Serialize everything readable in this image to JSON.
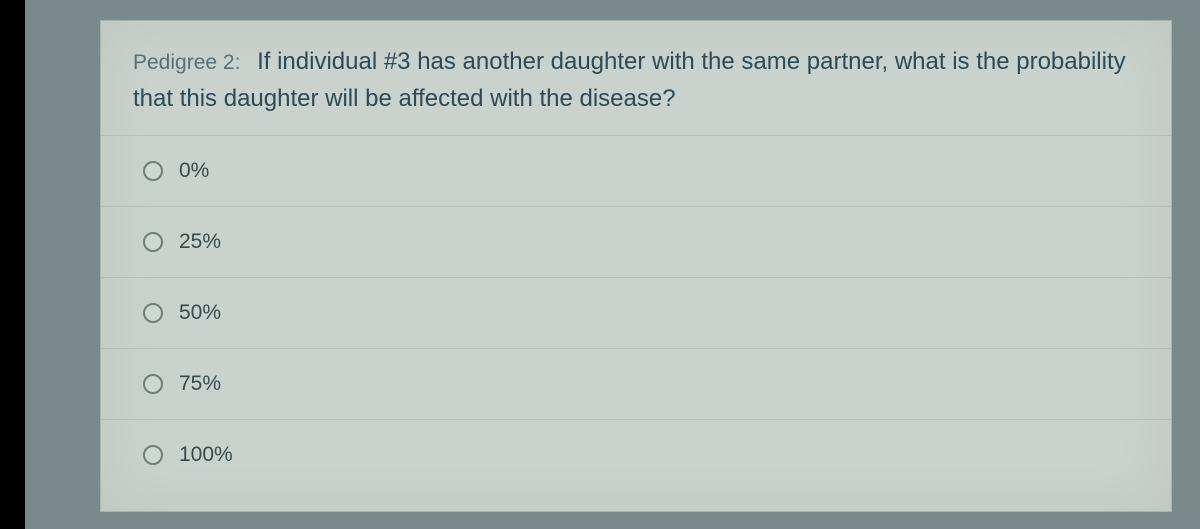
{
  "question": {
    "label": "Pedigree 2:",
    "text": "If individual #3 has another daughter with the same partner, what is the probability that this daughter will be affected with the disease?"
  },
  "options": [
    {
      "label": "0%"
    },
    {
      "label": "25%"
    },
    {
      "label": "50%"
    },
    {
      "label": "75%"
    },
    {
      "label": "100%"
    }
  ],
  "style": {
    "page_bg": "#7a8a8a",
    "panel_bg": "#c9d2cd",
    "border_color": "#b4bfba",
    "question_color": "#2e4a55",
    "label_color": "#5a6f74",
    "option_text_color": "#3a4a4c",
    "radio_border": "#6f7d7b"
  }
}
